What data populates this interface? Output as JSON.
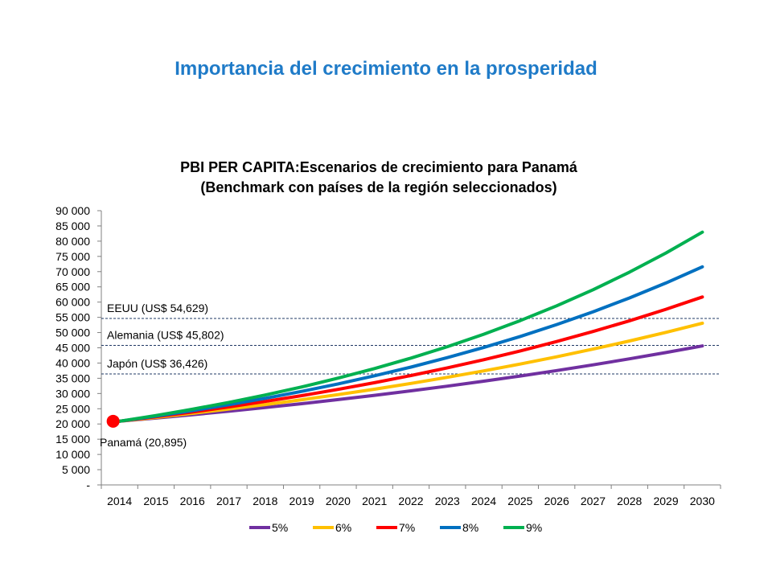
{
  "slide": {
    "title": "Importancia del crecimiento en la prosperidad"
  },
  "chart_data": {
    "type": "line",
    "title": "PBI PER CAPITA:Escenarios  de crecimiento para Panamá",
    "subtitle": "(Benchmark  con países de la región seleccionados)",
    "x": [
      "2014",
      "2015",
      "2016",
      "2017",
      "2018",
      "2019",
      "2020",
      "2021",
      "2022",
      "2023",
      "2024",
      "2025",
      "2026",
      "2027",
      "2028",
      "2029",
      "2030"
    ],
    "ylim": [
      0,
      90000
    ],
    "y_ticks": [
      0,
      5000,
      10000,
      15000,
      20000,
      25000,
      30000,
      35000,
      40000,
      45000,
      50000,
      55000,
      60000,
      65000,
      70000,
      75000,
      80000,
      85000,
      90000
    ],
    "y_tick_labels": [
      "-",
      "5 000",
      "10 000",
      "15 000",
      "20 000",
      "25 000",
      "30 000",
      "35 000",
      "40 000",
      "45 000",
      "50 000",
      "55 000",
      "60 000",
      "65 000",
      "70 000",
      "75 000",
      "80 000",
      "85 000",
      "90 000"
    ],
    "grid": false,
    "legend": "bottom",
    "series": [
      {
        "name": "5%",
        "color": "#7030a0",
        "values": [
          20895,
          21940,
          23037,
          24189,
          25398,
          26668,
          28002,
          29402,
          30872,
          32415,
          34036,
          35738,
          37525,
          39401,
          41371,
          43440,
          45612
        ]
      },
      {
        "name": "6%",
        "color": "#ffc000",
        "values": [
          20895,
          22149,
          23477,
          24886,
          26379,
          27962,
          29640,
          31418,
          33303,
          35302,
          37420,
          39665,
          42045,
          44567,
          47241,
          50076,
          53081
        ]
      },
      {
        "name": "7%",
        "color": "#ff0000",
        "values": [
          20895,
          22358,
          23923,
          25597,
          27389,
          29306,
          31358,
          33553,
          35902,
          38415,
          41104,
          43981,
          47060,
          50354,
          53879,
          57650,
          61686
        ]
      },
      {
        "name": "8%",
        "color": "#0070c0",
        "values": [
          20895,
          22567,
          24372,
          26322,
          28427,
          30702,
          33158,
          35810,
          38675,
          41769,
          45111,
          48720,
          52617,
          56827,
          61373,
          66283,
          71586
        ]
      },
      {
        "name": "9%",
        "color": "#00b050",
        "values": [
          20895,
          22776,
          24825,
          27060,
          29495,
          32149,
          35043,
          38196,
          41634,
          45381,
          49465,
          53917,
          58770,
          64059,
          69825,
          76109,
          82959
        ]
      }
    ],
    "benchmarks": [
      {
        "label": "EEUU (US$ 54,629)",
        "value": 54629
      },
      {
        "label": "Alemania (US$ 45,802)",
        "value": 45802
      },
      {
        "label": "Japón (US$ 36,426)",
        "value": 36426
      }
    ],
    "start_point": {
      "label": "Panamá (20,895)",
      "value": 20895,
      "x": "2014",
      "color": "#ff0000"
    }
  }
}
